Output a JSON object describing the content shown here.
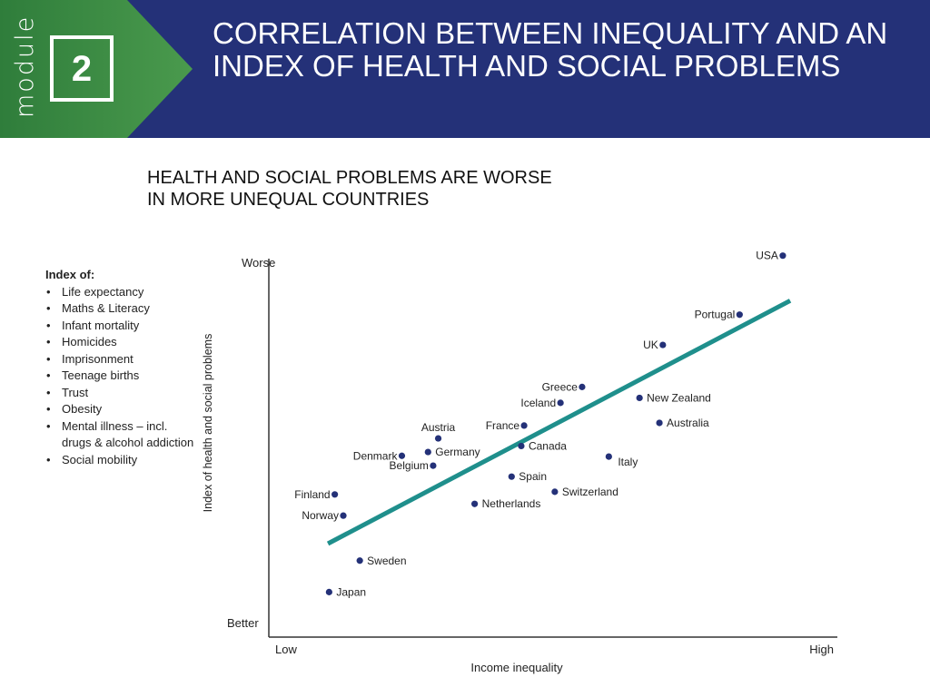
{
  "header": {
    "module_label": "module",
    "module_number": "2",
    "title": "CORRELATION BETWEEN INEQUALITY AND AN INDEX OF HEALTH AND SOCIAL PROBLEMS",
    "colors": {
      "green": "#3d8b46",
      "navy": "#243178"
    }
  },
  "subtitle": {
    "line1": "HEALTH AND SOCIAL PROBLEMS ARE WORSE",
    "line2": "IN MORE UNEQUAL COUNTRIES"
  },
  "index": {
    "title": "Index of:",
    "items": [
      "Life expectancy",
      "Maths & Literacy",
      "Infant mortality",
      "Homicides",
      "Imprisonment",
      "Teenage births",
      "Trust",
      "Obesity",
      "Mental illness – incl. drugs & alcohol addiction",
      "Social mobility"
    ]
  },
  "chart_data": {
    "type": "scatter",
    "title": "HEALTH AND SOCIAL PROBLEMS ARE WORSE IN MORE UNEQUAL COUNTRIES",
    "xlabel": "Income inequality",
    "ylabel": "Index of health and social problems",
    "x_low_label": "Low",
    "x_high_label": "High",
    "y_top_label": "Worse",
    "y_bottom_label": "Better",
    "xlim": [
      0,
      100
    ],
    "ylim": [
      0,
      100
    ],
    "colors": {
      "points": "#243178",
      "trend": "#1f8f8c",
      "axis": "#333333"
    },
    "points": [
      {
        "name": "USA",
        "x": 90.4,
        "y": 100.8,
        "label_side": "left"
      },
      {
        "name": "Portugal",
        "x": 82.8,
        "y": 85.2,
        "label_side": "left"
      },
      {
        "name": "UK",
        "x": 69.3,
        "y": 77.2,
        "label_side": "left"
      },
      {
        "name": "Greece",
        "x": 55.1,
        "y": 66.1,
        "label_side": "left"
      },
      {
        "name": "New Zealand",
        "x": 65.2,
        "y": 63.2,
        "label_side": "right"
      },
      {
        "name": "Iceland",
        "x": 51.3,
        "y": 61.9,
        "label_side": "left"
      },
      {
        "name": "Australia",
        "x": 68.7,
        "y": 56.6,
        "label_side": "right"
      },
      {
        "name": "France",
        "x": 44.9,
        "y": 55.9,
        "label_side": "left"
      },
      {
        "name": "Austria",
        "x": 29.8,
        "y": 52.5,
        "label_side": "above"
      },
      {
        "name": "Germany",
        "x": 28.0,
        "y": 48.9,
        "label_side": "right"
      },
      {
        "name": "Canada",
        "x": 44.4,
        "y": 50.5,
        "label_side": "right"
      },
      {
        "name": "Denmark",
        "x": 23.4,
        "y": 47.9,
        "label_side": "left"
      },
      {
        "name": "Italy",
        "x": 59.8,
        "y": 47.7,
        "label_side": "right-below"
      },
      {
        "name": "Belgium",
        "x": 28.9,
        "y": 45.3,
        "label_side": "left"
      },
      {
        "name": "Spain",
        "x": 42.7,
        "y": 42.4,
        "label_side": "right"
      },
      {
        "name": "Switzerland",
        "x": 50.3,
        "y": 38.4,
        "label_side": "right"
      },
      {
        "name": "Finland",
        "x": 11.6,
        "y": 37.7,
        "label_side": "left"
      },
      {
        "name": "Netherlands",
        "x": 36.2,
        "y": 35.2,
        "label_side": "right"
      },
      {
        "name": "Norway",
        "x": 13.1,
        "y": 32.1,
        "label_side": "left"
      },
      {
        "name": "Sweden",
        "x": 16.0,
        "y": 20.2,
        "label_side": "right"
      },
      {
        "name": "Japan",
        "x": 10.6,
        "y": 11.9,
        "label_side": "right"
      }
    ],
    "trendline": {
      "x": [
        10.4,
        91.7
      ],
      "y": [
        24.7,
        88.9
      ]
    }
  }
}
